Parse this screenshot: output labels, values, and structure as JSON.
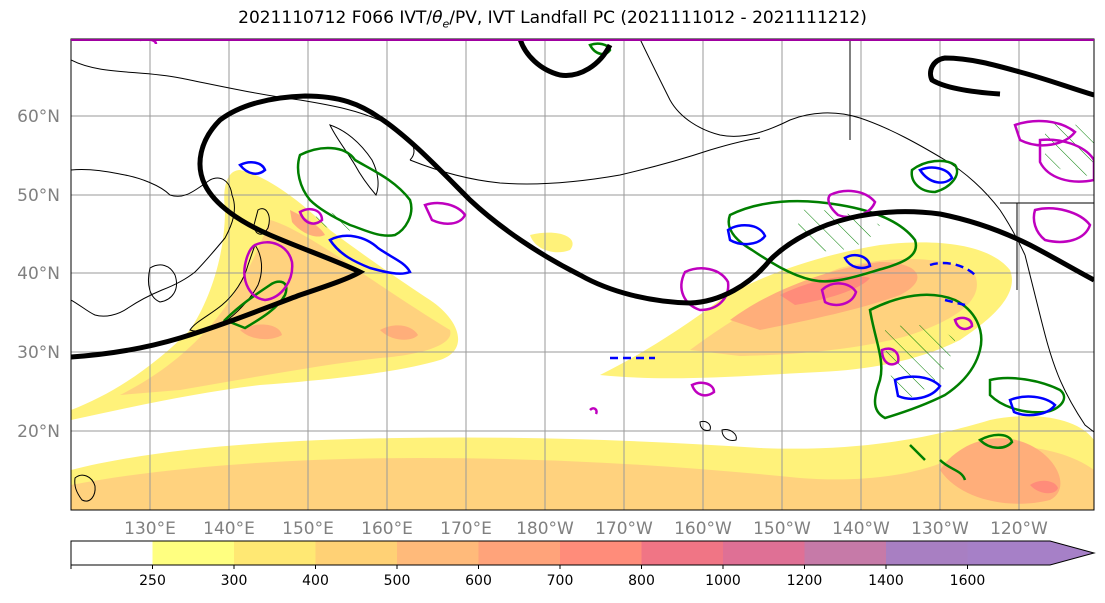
{
  "title": {
    "prefix": "2021110712 F066 IVT/",
    "theta": "θ",
    "theta_sub": "e",
    "suffix": "/PV, IVT Landfall PC (2021111012 - 2021111212)"
  },
  "lat_labels": [
    "60°N",
    "50°N",
    "40°N",
    "30°N",
    "20°N"
  ],
  "lon_labels": [
    "130°E",
    "140°E",
    "150°E",
    "160°E",
    "170°E",
    "180°W",
    "170°W",
    "160°W",
    "150°W",
    "140°W",
    "130°W",
    "120°W"
  ],
  "colorbar": {
    "ticks": [
      "250",
      "300",
      "400",
      "500",
      "600",
      "700",
      "800",
      "1000",
      "1200",
      "1400",
      "1600"
    ],
    "colors": [
      "#ffffff",
      "#ffff80",
      "#ffe873",
      "#ffd175",
      "#ffba7a",
      "#ffa37a",
      "#ff8c7a",
      "#f07585",
      "#df7095",
      "#c67aa8",
      "#a87fc2",
      "#a680c7"
    ]
  },
  "colors": {
    "ivt_low": "#fff27a",
    "ivt_mid": "#ffd27e",
    "ivt_high": "#ffae7a",
    "ivt_peak": "#ff8c7a",
    "pv_contour": "#000000",
    "green_contour": "#007f00",
    "magenta_contour": "#bf00bf",
    "blue_contour": "#0000ff",
    "axis_label": "#808080"
  }
}
